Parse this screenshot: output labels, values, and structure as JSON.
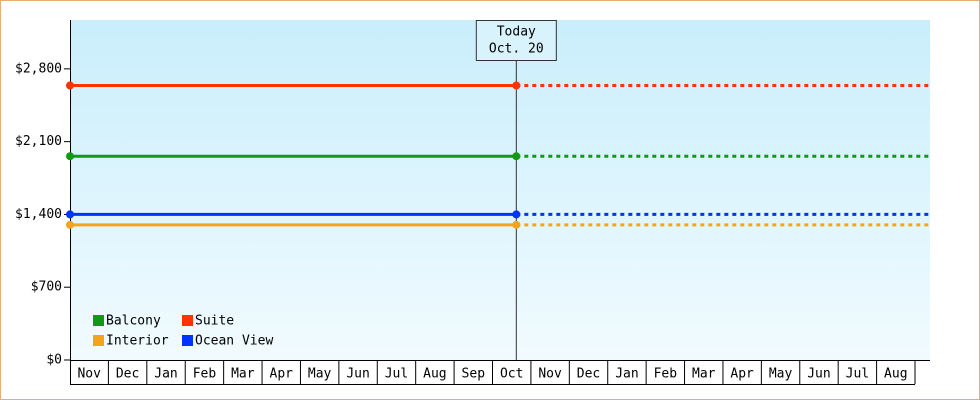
{
  "chart_data": {
    "type": "line",
    "categories": [
      "Nov",
      "Dec",
      "Jan",
      "Feb",
      "Mar",
      "Apr",
      "May",
      "Jun",
      "Jul",
      "Aug",
      "Sep",
      "Oct",
      "Nov",
      "Dec",
      "Jan",
      "Feb",
      "Mar",
      "Apr",
      "May",
      "Jun",
      "Jul",
      "Aug"
    ],
    "series": [
      {
        "name": "Balcony",
        "color": "#119911",
        "values": [
          1960,
          1960,
          1960,
          1960,
          1960,
          1960,
          1960,
          1960,
          1960,
          1960,
          1960,
          1960,
          1960,
          1960,
          1960,
          1960,
          1960,
          1960,
          1960,
          1960,
          1960,
          1960
        ]
      },
      {
        "name": "Suite",
        "color": "#ff3300",
        "values": [
          2640,
          2640,
          2640,
          2640,
          2640,
          2640,
          2640,
          2640,
          2640,
          2640,
          2640,
          2640,
          2640,
          2640,
          2640,
          2640,
          2640,
          2640,
          2640,
          2640,
          2640,
          2640
        ]
      },
      {
        "name": "Interior",
        "color": "#f5a31a",
        "values": [
          1300,
          1300,
          1300,
          1300,
          1300,
          1300,
          1300,
          1300,
          1300,
          1300,
          1300,
          1300,
          1300,
          1300,
          1300,
          1300,
          1300,
          1300,
          1300,
          1300,
          1300,
          1300
        ]
      },
      {
        "name": "Ocean View",
        "color": "#0033ff",
        "values": [
          1400,
          1400,
          1400,
          1400,
          1400,
          1400,
          1400,
          1400,
          1400,
          1400,
          1400,
          1400,
          1400,
          1400,
          1400,
          1400,
          1400,
          1400,
          1400,
          1400,
          1400,
          1400
        ]
      }
    ],
    "annotation": [
      "Today",
      "Oct. 20"
    ],
    "ylim": [
      0,
      3270
    ],
    "yticks": [
      {
        "value": 0,
        "label": "$0"
      },
      {
        "value": 700,
        "label": "$700"
      },
      {
        "value": 1400,
        "label": "$1,400"
      },
      {
        "value": 2100,
        "label": "$2,100"
      },
      {
        "value": 2800,
        "label": "$2,800"
      }
    ],
    "legend": "lower left"
  }
}
